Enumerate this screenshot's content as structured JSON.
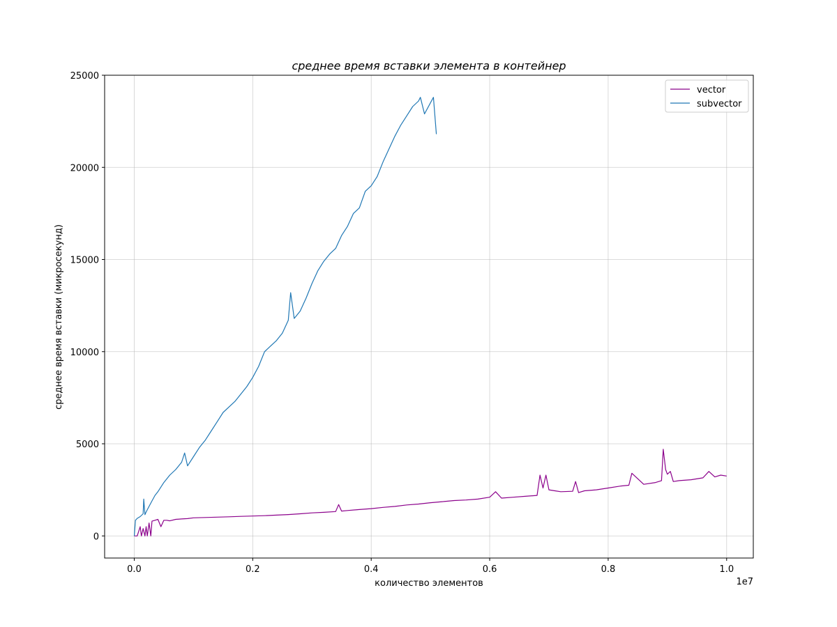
{
  "chart_data": {
    "type": "line",
    "title": "среднее время вставки элемента в контейнер",
    "xlabel": "количество элементов",
    "ylabel": "среднее время вставки (микросекунд)",
    "x_offset_label": "1e7",
    "xlim": [
      -0.05,
      1.045
    ],
    "ylim": [
      -1200,
      25000
    ],
    "x_ticks": [
      0.0,
      0.2,
      0.4,
      0.6,
      0.8,
      1.0
    ],
    "x_tick_labels": [
      "0.0",
      "0.2",
      "0.4",
      "0.6",
      "0.8",
      "1.0"
    ],
    "y_ticks": [
      0,
      5000,
      10000,
      15000,
      20000,
      25000
    ],
    "y_tick_labels": [
      "0",
      "5000",
      "10000",
      "15000",
      "20000",
      "25000"
    ],
    "grid": true,
    "legend_position": "top-right",
    "series": [
      {
        "name": "vector",
        "color": "#8b008b",
        "x": [
          0.0,
          0.005,
          0.01,
          0.012,
          0.015,
          0.018,
          0.02,
          0.022,
          0.025,
          0.028,
          0.03,
          0.035,
          0.04,
          0.045,
          0.05,
          0.055,
          0.06,
          0.07,
          0.08,
          0.09,
          0.1,
          0.12,
          0.14,
          0.16,
          0.18,
          0.2,
          0.22,
          0.24,
          0.26,
          0.28,
          0.3,
          0.32,
          0.34,
          0.345,
          0.35,
          0.36,
          0.38,
          0.4,
          0.42,
          0.44,
          0.46,
          0.48,
          0.5,
          0.52,
          0.54,
          0.56,
          0.58,
          0.6,
          0.61,
          0.62,
          0.64,
          0.66,
          0.68,
          0.685,
          0.69,
          0.695,
          0.7,
          0.71,
          0.72,
          0.74,
          0.745,
          0.75,
          0.76,
          0.78,
          0.8,
          0.82,
          0.835,
          0.84,
          0.86,
          0.88,
          0.89,
          0.893,
          0.897,
          0.9,
          0.905,
          0.91,
          0.92,
          0.94,
          0.96,
          0.97,
          0.98,
          0.99,
          1.0
        ],
        "y": [
          0,
          0,
          500,
          0,
          400,
          0,
          500,
          0,
          700,
          0,
          800,
          850,
          900,
          500,
          850,
          850,
          820,
          900,
          920,
          940,
          980,
          1000,
          1020,
          1040,
          1060,
          1080,
          1100,
          1130,
          1160,
          1200,
          1250,
          1280,
          1320,
          1700,
          1350,
          1380,
          1430,
          1480,
          1550,
          1600,
          1680,
          1730,
          1800,
          1860,
          1920,
          1950,
          2000,
          2100,
          2400,
          2050,
          2100,
          2150,
          2200,
          3300,
          2600,
          3300,
          2500,
          2450,
          2400,
          2420,
          2950,
          2350,
          2450,
          2500,
          2600,
          2700,
          2750,
          3400,
          2800,
          2900,
          3000,
          4700,
          3600,
          3350,
          3500,
          2950,
          3000,
          3050,
          3150,
          3500,
          3200,
          3300,
          3250
        ]
      },
      {
        "name": "subvector",
        "color": "#1f77b4",
        "x": [
          0.0,
          0.002,
          0.005,
          0.01,
          0.015,
          0.016,
          0.018,
          0.02,
          0.025,
          0.03,
          0.035,
          0.04,
          0.05,
          0.06,
          0.07,
          0.08,
          0.085,
          0.09,
          0.1,
          0.11,
          0.12,
          0.13,
          0.14,
          0.15,
          0.16,
          0.17,
          0.18,
          0.19,
          0.2,
          0.21,
          0.22,
          0.23,
          0.24,
          0.25,
          0.26,
          0.264,
          0.27,
          0.28,
          0.29,
          0.3,
          0.31,
          0.32,
          0.33,
          0.34,
          0.35,
          0.36,
          0.37,
          0.38,
          0.39,
          0.4,
          0.41,
          0.42,
          0.43,
          0.44,
          0.45,
          0.46,
          0.47,
          0.48,
          0.483,
          0.49,
          0.5,
          0.505,
          0.51
        ],
        "y": [
          0,
          850,
          950,
          1050,
          1200,
          2000,
          1150,
          1300,
          1600,
          1900,
          2200,
          2400,
          2900,
          3300,
          3600,
          4000,
          4500,
          3800,
          4300,
          4800,
          5200,
          5700,
          6200,
          6700,
          7000,
          7300,
          7700,
          8100,
          8600,
          9200,
          10000,
          10300,
          10600,
          11000,
          11700,
          13200,
          11800,
          12200,
          12900,
          13700,
          14400,
          14900,
          15300,
          15600,
          16300,
          16800,
          17500,
          17800,
          18700,
          19000,
          19500,
          20300,
          21000,
          21700,
          22300,
          22800,
          23300,
          23600,
          23800,
          22900,
          23500,
          23800,
          21800
        ]
      }
    ]
  }
}
